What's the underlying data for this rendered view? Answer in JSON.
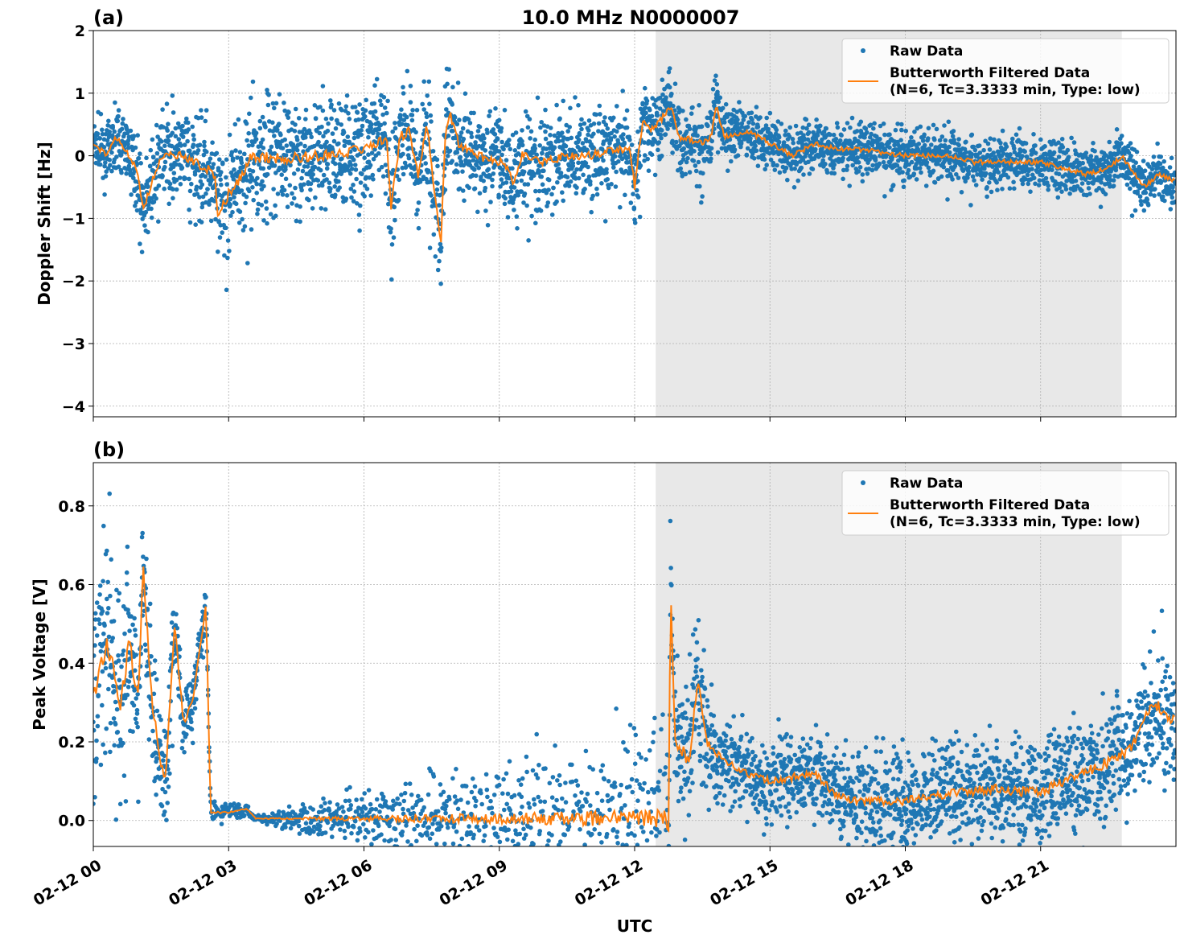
{
  "title": "10.0 MHz N0000007",
  "xlabel": "UTC",
  "x_ticks": [
    "02-12 00",
    "02-12 03",
    "02-12 06",
    "02-12 09",
    "02-12 12",
    "02-12 15",
    "02-12 18",
    "02-12 21"
  ],
  "shaded_interval": [
    "12:28",
    "22:48"
  ],
  "colors": {
    "raw": "#1f77b4",
    "filtered": "#ff7f0e",
    "shade": "#e8e8e8"
  },
  "legend": {
    "raw": "Raw Data",
    "filtered_line1": "Butterworth Filtered Data",
    "filtered_line2": "(N=6, Tc=3.3333 min, Type: low)",
    "placement": "upper right"
  },
  "chart_data": [
    {
      "panel": "(a)",
      "type": "scatter+line",
      "ylabel": "Doppler Shift [Hz]",
      "xlim": [
        "00:00",
        "24:00"
      ],
      "ylim": [
        -4.17,
        2.0
      ],
      "y_ticks": [
        "2",
        "1",
        "0",
        "−1",
        "−2",
        "−3",
        "−4"
      ],
      "y_tick_values": [
        2,
        1,
        0,
        -1,
        -2,
        -3,
        -4
      ],
      "grid": true,
      "filtered": {
        "x": [
          "00:00",
          "00:18",
          "00:30",
          "00:48",
          "01:00",
          "01:06",
          "01:18",
          "01:30",
          "02:00",
          "02:30",
          "02:42",
          "02:45",
          "03:00",
          "03:18",
          "03:30",
          "04:00",
          "05:00",
          "06:00",
          "06:30",
          "06:36",
          "06:48",
          "07:00",
          "07:12",
          "07:24",
          "07:30",
          "07:36",
          "07:42",
          "07:48",
          "07:54",
          "08:06",
          "08:30",
          "09:00",
          "09:12",
          "09:18",
          "09:30",
          "10:00",
          "10:30",
          "11:00",
          "11:30",
          "11:54",
          "12:00",
          "12:06",
          "12:12",
          "12:24",
          "12:36",
          "12:48",
          "13:00",
          "13:30",
          "13:42",
          "13:48",
          "14:00",
          "14:30",
          "15:00",
          "15:30",
          "16:00",
          "16:30",
          "17:00",
          "18:00",
          "19:00",
          "19:30",
          "20:00",
          "21:00",
          "21:30",
          "22:00",
          "22:30",
          "22:48",
          "23:00",
          "23:18",
          "23:36",
          "24:00"
        ],
        "y": [
          0.2,
          0.0,
          0.3,
          0.0,
          -0.3,
          -0.9,
          -0.4,
          0.0,
          0.0,
          -0.2,
          -0.3,
          -1.0,
          -0.6,
          -0.3,
          0.0,
          -0.05,
          0.0,
          0.1,
          0.3,
          -0.8,
          0.3,
          0.4,
          -0.3,
          0.5,
          -0.2,
          -0.7,
          -1.5,
          0.3,
          0.7,
          0.2,
          0.0,
          -0.1,
          -0.2,
          -0.5,
          0.0,
          -0.1,
          0.0,
          0.0,
          0.1,
          0.1,
          -0.5,
          0.1,
          0.6,
          0.4,
          0.6,
          0.8,
          0.3,
          0.2,
          0.3,
          0.8,
          0.3,
          0.4,
          0.2,
          0.0,
          0.2,
          0.1,
          0.1,
          0.0,
          0.0,
          -0.1,
          -0.1,
          -0.1,
          -0.2,
          -0.3,
          -0.2,
          0.0,
          -0.2,
          -0.5,
          -0.3,
          -0.4
        ]
      },
      "raw_spread": {
        "x": [
          "00:00",
          "03:30",
          "12:30",
          "14:30",
          "24:00"
        ],
        "halfwidth": [
          0.25,
          0.6,
          0.4,
          0.25,
          0.25
        ]
      }
    },
    {
      "panel": "(b)",
      "type": "scatter+line",
      "ylabel": "Peak Voltage [V]",
      "xlim": [
        "00:00",
        "24:00"
      ],
      "ylim": [
        -0.066,
        0.91
      ],
      "y_ticks": [
        "0.0",
        "0.2",
        "0.4",
        "0.6",
        "0.8"
      ],
      "y_tick_values": [
        0,
        0.2,
        0.4,
        0.6,
        0.8
      ],
      "grid": true,
      "filtered": {
        "x": [
          "00:00",
          "00:18",
          "00:36",
          "00:48",
          "01:00",
          "01:06",
          "01:18",
          "01:30",
          "01:36",
          "01:48",
          "02:00",
          "02:12",
          "02:30",
          "02:36",
          "03:00",
          "03:24",
          "03:36",
          "12:42",
          "12:45",
          "12:48",
          "12:54",
          "13:12",
          "13:24",
          "13:36",
          "14:00",
          "14:30",
          "15:00",
          "16:00",
          "16:30",
          "17:00",
          "18:00",
          "19:00",
          "20:00",
          "21:00",
          "21:30",
          "22:00",
          "22:30",
          "23:00",
          "23:30",
          "24:00"
        ],
        "y": [
          0.3,
          0.45,
          0.3,
          0.45,
          0.3,
          0.65,
          0.3,
          0.15,
          0.1,
          0.5,
          0.25,
          0.3,
          0.55,
          0.02,
          0.02,
          0.03,
          0.005,
          0.005,
          -0.02,
          0.6,
          0.2,
          0.15,
          0.35,
          0.2,
          0.15,
          0.12,
          0.1,
          0.12,
          0.06,
          0.05,
          0.05,
          0.07,
          0.08,
          0.07,
          0.1,
          0.12,
          0.15,
          0.18,
          0.3,
          0.25
        ]
      },
      "raw_spread": {
        "x": [
          "00:00",
          "02:36",
          "03:36",
          "12:42",
          "14:00",
          "24:00"
        ],
        "halfwidth": [
          0.2,
          0.02,
          0.005,
          0.15,
          0.06,
          0.1
        ]
      }
    }
  ]
}
